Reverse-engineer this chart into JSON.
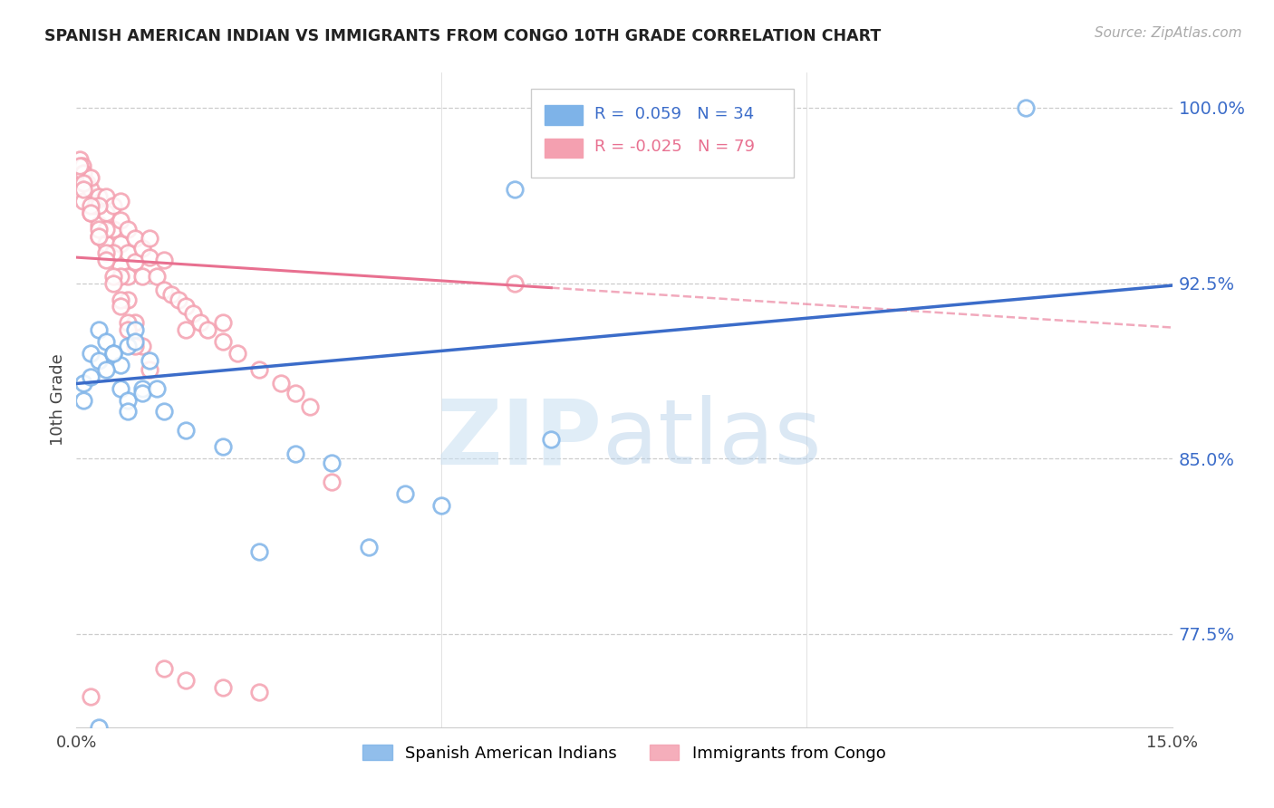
{
  "title": "SPANISH AMERICAN INDIAN VS IMMIGRANTS FROM CONGO 10TH GRADE CORRELATION CHART",
  "source": "Source: ZipAtlas.com",
  "ylabel": "10th Grade",
  "yticks": [
    0.775,
    0.85,
    0.925,
    1.0
  ],
  "ytick_labels": [
    "77.5%",
    "85.0%",
    "92.5%",
    "100.0%"
  ],
  "xmin": 0.0,
  "xmax": 0.15,
  "ymin": 0.735,
  "ymax": 1.015,
  "blue_R": 0.059,
  "blue_N": 34,
  "pink_R": -0.025,
  "pink_N": 79,
  "blue_marker_color": "#7EB3E8",
  "pink_marker_color": "#F4A0B0",
  "blue_line_color": "#3B6CC9",
  "pink_line_color": "#E87090",
  "legend_label_blue": "Spanish American Indians",
  "legend_label_pink": "Immigrants from Congo",
  "blue_x": [
    0.001,
    0.002,
    0.003,
    0.004,
    0.005,
    0.006,
    0.007,
    0.008,
    0.009,
    0.001,
    0.002,
    0.003,
    0.004,
    0.005,
    0.006,
    0.007,
    0.008,
    0.009,
    0.01,
    0.011,
    0.012,
    0.015,
    0.02,
    0.025,
    0.03,
    0.035,
    0.04,
    0.045,
    0.05,
    0.06,
    0.065,
    0.13,
    0.007,
    0.003
  ],
  "blue_y": [
    0.882,
    0.895,
    0.905,
    0.9,
    0.895,
    0.89,
    0.898,
    0.905,
    0.88,
    0.875,
    0.885,
    0.892,
    0.888,
    0.895,
    0.88,
    0.875,
    0.9,
    0.878,
    0.892,
    0.88,
    0.87,
    0.862,
    0.855,
    0.81,
    0.852,
    0.848,
    0.812,
    0.835,
    0.83,
    0.965,
    0.858,
    1.0,
    0.87,
    0.735
  ],
  "pink_x": [
    0.0005,
    0.0008,
    0.001,
    0.001,
    0.0015,
    0.002,
    0.002,
    0.0025,
    0.003,
    0.003,
    0.003,
    0.004,
    0.004,
    0.004,
    0.005,
    0.005,
    0.005,
    0.006,
    0.006,
    0.006,
    0.006,
    0.007,
    0.007,
    0.007,
    0.008,
    0.008,
    0.009,
    0.009,
    0.01,
    0.01,
    0.011,
    0.012,
    0.012,
    0.013,
    0.014,
    0.015,
    0.015,
    0.016,
    0.017,
    0.018,
    0.02,
    0.02,
    0.022,
    0.025,
    0.028,
    0.03,
    0.032,
    0.035,
    0.002,
    0.003,
    0.004,
    0.005,
    0.006,
    0.007,
    0.008,
    0.009,
    0.01,
    0.001,
    0.002,
    0.003,
    0.004,
    0.005,
    0.006,
    0.007,
    0.008,
    0.0005,
    0.001,
    0.002,
    0.003,
    0.004,
    0.005,
    0.006,
    0.007,
    0.06,
    0.002,
    0.012,
    0.015,
    0.02,
    0.025
  ],
  "pink_y": [
    0.978,
    0.975,
    0.972,
    0.96,
    0.968,
    0.965,
    0.955,
    0.958,
    0.962,
    0.95,
    0.945,
    0.962,
    0.955,
    0.942,
    0.958,
    0.948,
    0.938,
    0.952,
    0.942,
    0.932,
    0.96,
    0.948,
    0.938,
    0.928,
    0.944,
    0.934,
    0.94,
    0.928,
    0.936,
    0.944,
    0.928,
    0.935,
    0.922,
    0.92,
    0.918,
    0.915,
    0.905,
    0.912,
    0.908,
    0.905,
    0.9,
    0.908,
    0.895,
    0.888,
    0.882,
    0.878,
    0.872,
    0.84,
    0.97,
    0.958,
    0.948,
    0.938,
    0.928,
    0.918,
    0.908,
    0.898,
    0.888,
    0.968,
    0.958,
    0.948,
    0.938,
    0.928,
    0.918,
    0.908,
    0.898,
    0.975,
    0.965,
    0.955,
    0.945,
    0.935,
    0.925,
    0.915,
    0.905,
    0.925,
    0.748,
    0.76,
    0.755,
    0.752,
    0.75
  ]
}
